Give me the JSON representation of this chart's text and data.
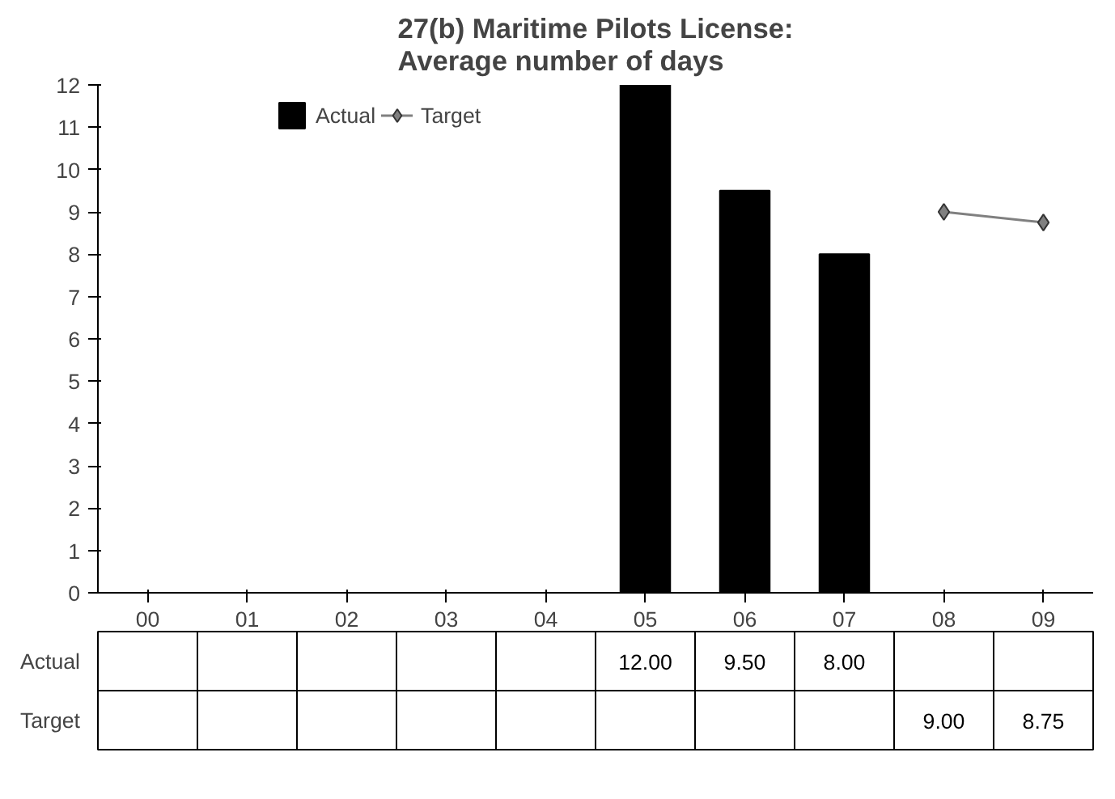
{
  "chart_data": {
    "type": "bar",
    "title": "27(b) Maritime Pilots License:\nAverage number of days",
    "categories": [
      "00",
      "01",
      "02",
      "03",
      "04",
      "05",
      "06",
      "07",
      "08",
      "09"
    ],
    "series": [
      {
        "name": "Actual",
        "color": "#000000",
        "values": [
          null,
          null,
          null,
          null,
          null,
          12,
          9.5,
          8,
          null,
          null
        ],
        "value_labels": [
          null,
          null,
          null,
          null,
          null,
          "12.00",
          "9.50",
          "8.00",
          null,
          null
        ]
      },
      {
        "name": "Target",
        "type": "line",
        "color": "#808080",
        "marker": "diamond",
        "values": [
          null,
          null,
          null,
          null,
          null,
          null,
          null,
          null,
          9,
          8.75
        ],
        "value_labels": [
          null,
          null,
          null,
          null,
          null,
          null,
          null,
          null,
          "9.00",
          "8.75"
        ]
      }
    ],
    "ylim": [
      0,
      12
    ],
    "yticks": [
      0,
      1,
      2,
      3,
      4,
      5,
      6,
      7,
      8,
      9,
      10,
      11,
      12
    ],
    "grid": false,
    "legend": "top"
  }
}
